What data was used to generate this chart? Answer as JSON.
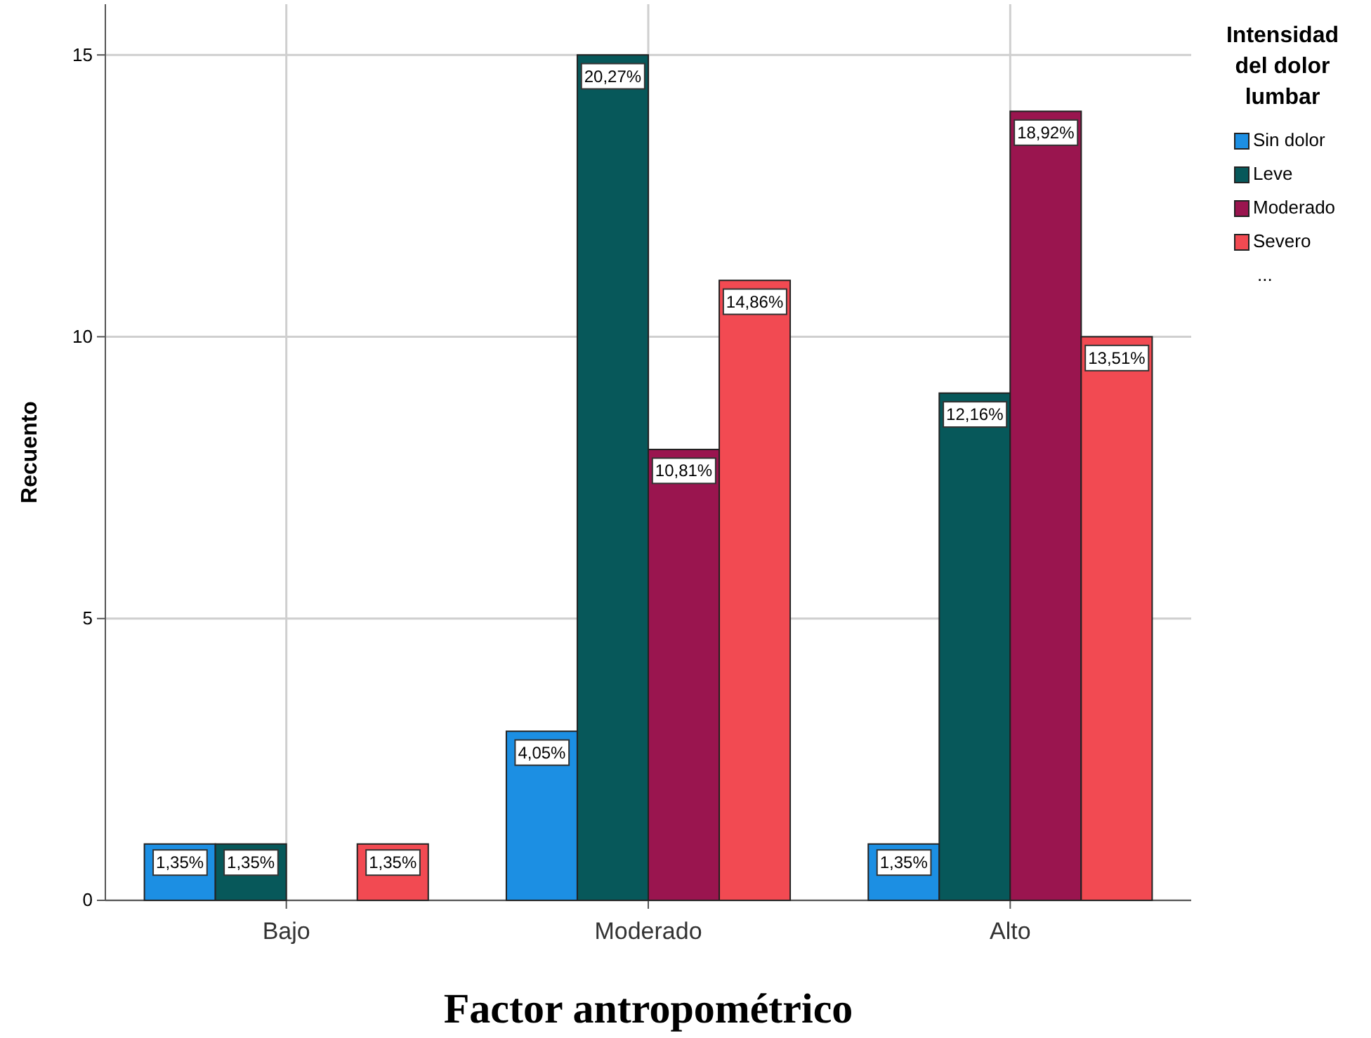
{
  "chart_data": {
    "type": "bar",
    "xlabel": "Factor antropométrico",
    "ylabel": "Recuento",
    "legend_title": "Intensidad del dolor lumbar",
    "categories": [
      "Bajo",
      "Moderado",
      "Alto"
    ],
    "series": [
      {
        "name": "Sin dolor",
        "color": "#1c8fe3",
        "values": [
          1,
          3,
          1
        ]
      },
      {
        "name": "Leve",
        "color": "#07585a",
        "values": [
          1,
          15,
          9
        ]
      },
      {
        "name": "Moderado",
        "color": "#9a154f",
        "values": [
          null,
          8,
          14
        ]
      },
      {
        "name": "Severo",
        "color": "#f24a52",
        "values": [
          1,
          11,
          10
        ]
      }
    ],
    "ylim": [
      0,
      15.9
    ],
    "yticks": [
      0,
      5,
      10,
      15
    ],
    "grid": true,
    "legend": "top right",
    "annotations": [
      "1,35%",
      "1,35%",
      "1,35%",
      "4,05%",
      "20,27%",
      "10,81%",
      "14,86%",
      "1,35%",
      "12,16%",
      "18,92%",
      "13,51%",
      "..."
    ]
  }
}
